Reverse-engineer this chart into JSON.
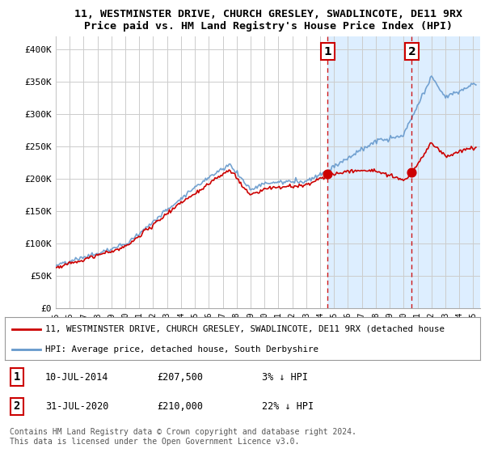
{
  "title": "11, WESTMINSTER DRIVE, CHURCH GRESLEY, SWADLINCOTE, DE11 9RX",
  "subtitle": "Price paid vs. HM Land Registry's House Price Index (HPI)",
  "ylabel_ticks": [
    "£0",
    "£50K",
    "£100K",
    "£150K",
    "£200K",
    "£250K",
    "£300K",
    "£350K",
    "£400K"
  ],
  "ytick_values": [
    0,
    50000,
    100000,
    150000,
    200000,
    250000,
    300000,
    350000,
    400000
  ],
  "ylim": [
    0,
    420000
  ],
  "xlim_start": 1995.0,
  "xlim_end": 2025.5,
  "background_color": "#ffffff",
  "plot_bg_color": "#ffffff",
  "grid_color": "#cccccc",
  "shade_color": "#ddeeff",
  "sale1": {
    "date_year": 2014.53,
    "price": 207500,
    "label": "1"
  },
  "sale2": {
    "date_year": 2020.58,
    "price": 210000,
    "label": "2"
  },
  "legend_entries": [
    {
      "label": "11, WESTMINSTER DRIVE, CHURCH GRESLEY, SWADLINCOTE, DE11 9RX (detached house",
      "color": "#cc0000",
      "lw": 1.8
    },
    {
      "label": "HPI: Average price, detached house, South Derbyshire",
      "color": "#6699cc",
      "lw": 1.8
    }
  ],
  "table_rows": [
    {
      "num": "1",
      "date": "10-JUL-2014",
      "price": "£207,500",
      "pct": "3% ↓ HPI"
    },
    {
      "num": "2",
      "date": "31-JUL-2020",
      "price": "£210,000",
      "pct": "22% ↓ HPI"
    }
  ],
  "footer": "Contains HM Land Registry data © Crown copyright and database right 2024.\nThis data is licensed under the Open Government Licence v3.0.",
  "vline_color": "#cc0000",
  "dot_color": "#cc0000",
  "hpi_line_color": "#6699cc",
  "price_line_color": "#cc0000",
  "title_fontsize": 9.5,
  "subtitle_fontsize": 8.5
}
